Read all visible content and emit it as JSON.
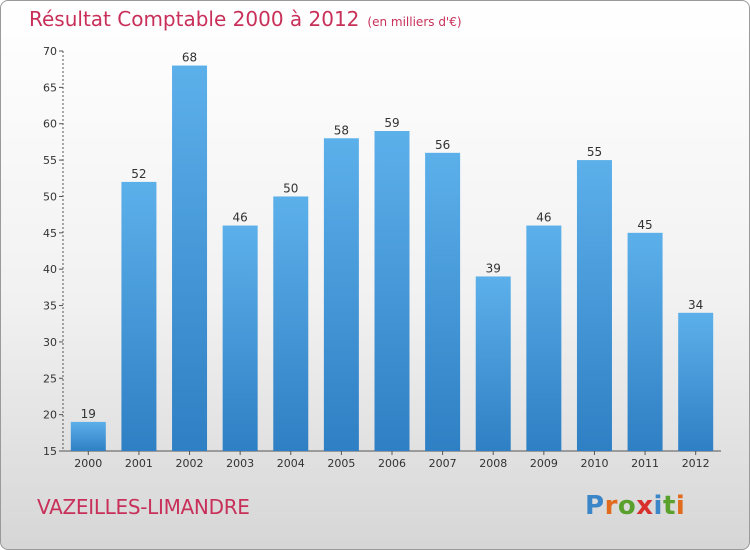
{
  "header": {
    "title": "Résultat Comptable 2000 à 2012",
    "subtitle": "(en milliers d'€)"
  },
  "footer": {
    "town": "VAZEILLES-LIMANDRE",
    "brand_letters": [
      "P",
      "r",
      "o",
      "x",
      "i",
      "t",
      "i"
    ]
  },
  "colors": {
    "title": "#c8305a",
    "bar_top": "#5cb0ea",
    "bar_bottom": "#2f7fc4"
  },
  "chart_data": {
    "type": "bar",
    "categories": [
      "2000",
      "2001",
      "2002",
      "2003",
      "2004",
      "2005",
      "2006",
      "2007",
      "2008",
      "2009",
      "2010",
      "2011",
      "2012"
    ],
    "values": [
      19,
      52,
      68,
      46,
      50,
      58,
      59,
      56,
      39,
      46,
      55,
      45,
      34
    ],
    "ylim": [
      15,
      70
    ],
    "yticks": [
      15,
      20,
      25,
      30,
      35,
      40,
      45,
      50,
      55,
      60,
      65,
      70
    ],
    "grid": false,
    "data_labels": true
  }
}
